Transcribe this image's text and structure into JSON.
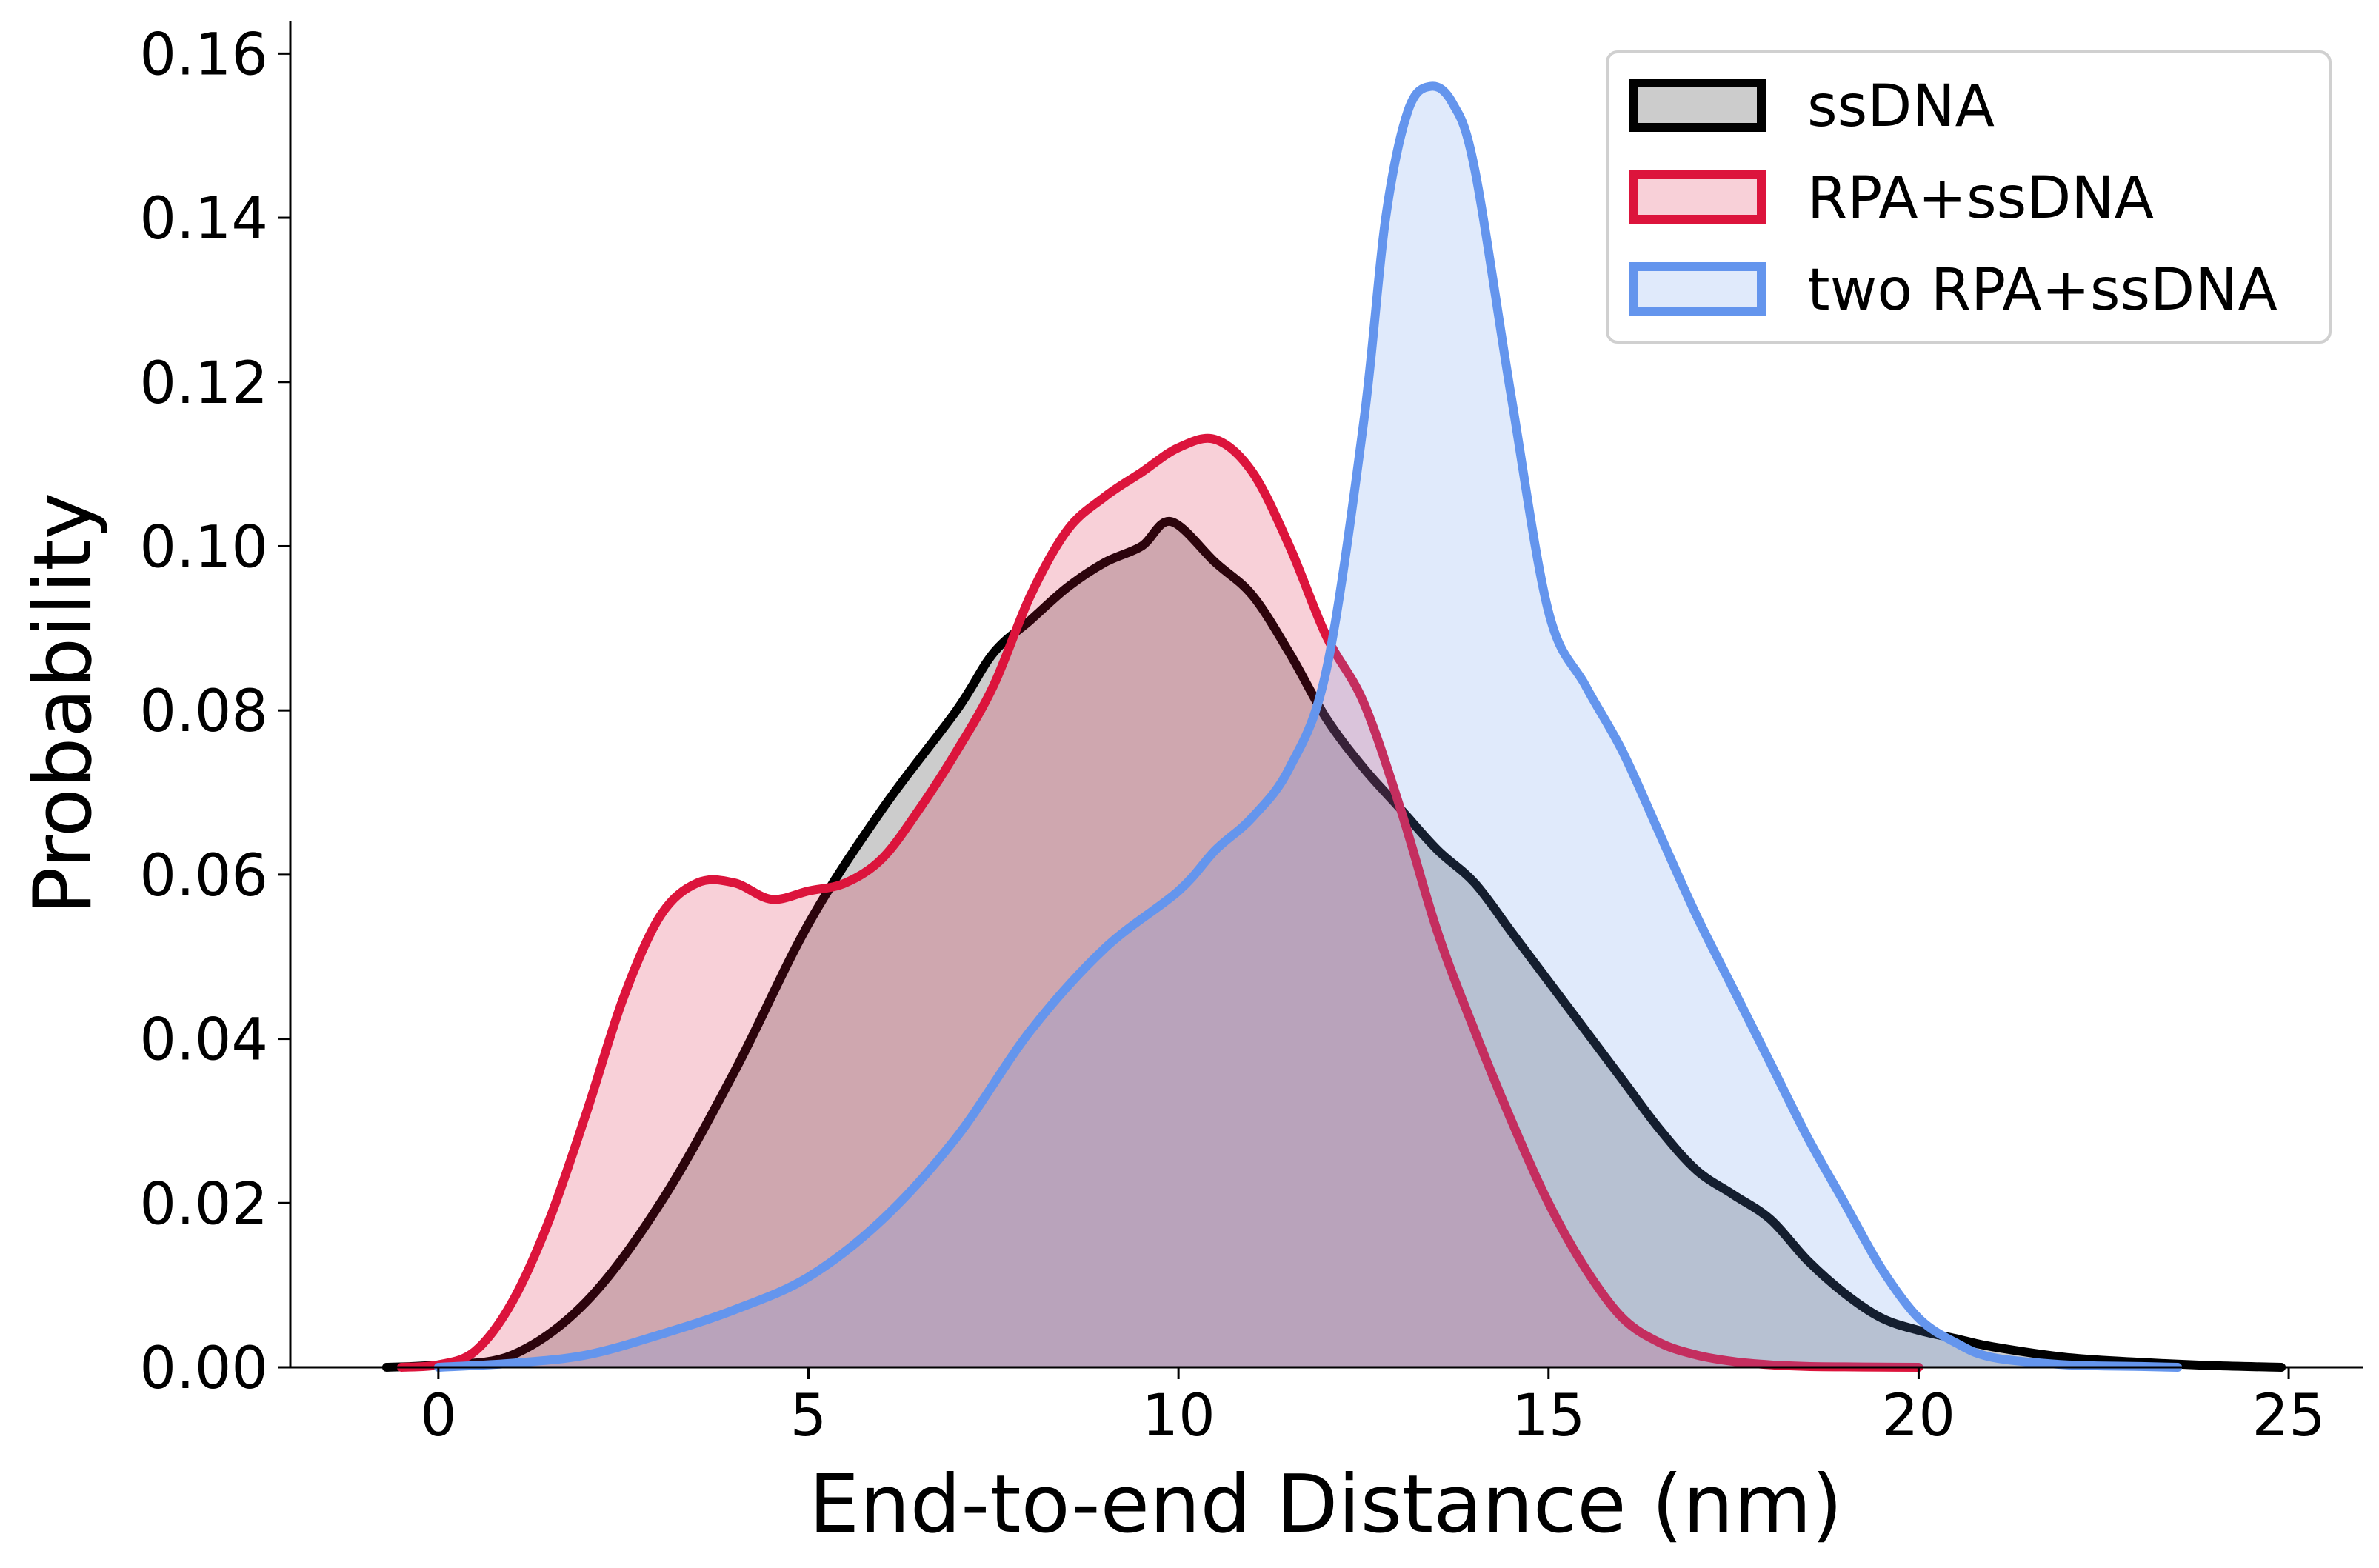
{
  "chart_data": {
    "type": "area",
    "xlabel": "End-to-end Distance (nm)",
    "ylabel": "Probability",
    "xlim": [
      -2,
      26
    ],
    "ylim": [
      0,
      0.164
    ],
    "xticks": [
      0,
      5,
      10,
      15,
      20,
      25
    ],
    "yticks": [
      0,
      0.02,
      0.04,
      0.06,
      0.08,
      0.1,
      0.12,
      0.14,
      0.16
    ],
    "xtick_labels": [
      "0",
      "5",
      "10",
      "15",
      "20",
      "25"
    ],
    "ytick_labels": [
      "0.00",
      "0.02",
      "0.04",
      "0.06",
      "0.08",
      "0.10",
      "0.12",
      "0.14",
      "0.16"
    ],
    "grid": false,
    "legend_position": "top-right",
    "series": [
      {
        "name": "ssDNA",
        "line_color": "#000000",
        "fill_color": "#000000",
        "fill_opacity": 0.2,
        "x": [
          -0.7,
          0,
          1,
          2,
          3,
          4,
          5,
          6,
          7,
          7.5,
          8,
          8.5,
          9,
          9.5,
          9.9,
          10.5,
          11,
          11.5,
          12,
          12.5,
          13,
          13.5,
          14,
          14.5,
          15,
          15.5,
          16,
          16.5,
          17,
          17.5,
          18,
          18.5,
          19,
          19.5,
          20,
          20.5,
          21,
          22,
          23,
          24,
          24.9
        ],
        "y": [
          0,
          0.0003,
          0.0015,
          0.008,
          0.02,
          0.036,
          0.054,
          0.068,
          0.08,
          0.087,
          0.091,
          0.095,
          0.098,
          0.1,
          0.103,
          0.098,
          0.094,
          0.087,
          0.079,
          0.073,
          0.068,
          0.063,
          0.059,
          0.053,
          0.047,
          0.041,
          0.035,
          0.029,
          0.024,
          0.021,
          0.018,
          0.013,
          0.009,
          0.006,
          0.0045,
          0.0035,
          0.0025,
          0.0012,
          0.0006,
          0.0002,
          0
        ]
      },
      {
        "name": "RPA+ssDNA",
        "line_color": "#dc143c",
        "fill_color": "#dc143c",
        "fill_opacity": 0.2,
        "x": [
          -0.5,
          0,
          0.5,
          1,
          1.5,
          2,
          2.5,
          3,
          3.5,
          4,
          4.5,
          5,
          5.5,
          6,
          6.5,
          7,
          7.5,
          8,
          8.5,
          9,
          9.5,
          10,
          10.5,
          11,
          11.5,
          12,
          12.5,
          13,
          13.5,
          14,
          14.5,
          15,
          15.5,
          16,
          16.5,
          17,
          17.5,
          18,
          18.5,
          19,
          19.5,
          20
        ],
        "y": [
          0,
          0.0003,
          0.002,
          0.008,
          0.018,
          0.031,
          0.045,
          0.055,
          0.059,
          0.059,
          0.057,
          0.058,
          0.059,
          0.062,
          0.068,
          0.075,
          0.083,
          0.094,
          0.102,
          0.106,
          0.109,
          0.112,
          0.113,
          0.109,
          0.1,
          0.089,
          0.081,
          0.068,
          0.053,
          0.041,
          0.03,
          0.02,
          0.012,
          0.006,
          0.003,
          0.0015,
          0.0007,
          0.0003,
          0.0001,
          5e-05,
          2e-05,
          0
        ]
      },
      {
        "name": "two RPA+ssDNA",
        "line_color": "#6495ed",
        "fill_color": "#6495ed",
        "fill_opacity": 0.2,
        "x": [
          0,
          1,
          2,
          3,
          4,
          5,
          6,
          7,
          8,
          9,
          10,
          10.5,
          11,
          11.5,
          12,
          12.5,
          12.8,
          13.1,
          13.4,
          13.7,
          14,
          14.5,
          15,
          15.5,
          16,
          16.5,
          17,
          17.5,
          18,
          18.5,
          19,
          19.5,
          20,
          20.5,
          21,
          22,
          23,
          23.5
        ],
        "y": [
          0,
          0.0005,
          0.0015,
          0.004,
          0.007,
          0.011,
          0.018,
          0.028,
          0.041,
          0.051,
          0.058,
          0.063,
          0.067,
          0.073,
          0.085,
          0.115,
          0.14,
          0.153,
          0.156,
          0.154,
          0.146,
          0.118,
          0.092,
          0.083,
          0.075,
          0.065,
          0.055,
          0.046,
          0.037,
          0.028,
          0.02,
          0.012,
          0.006,
          0.003,
          0.0012,
          0.0003,
          0.0001,
          0
        ]
      }
    ]
  }
}
